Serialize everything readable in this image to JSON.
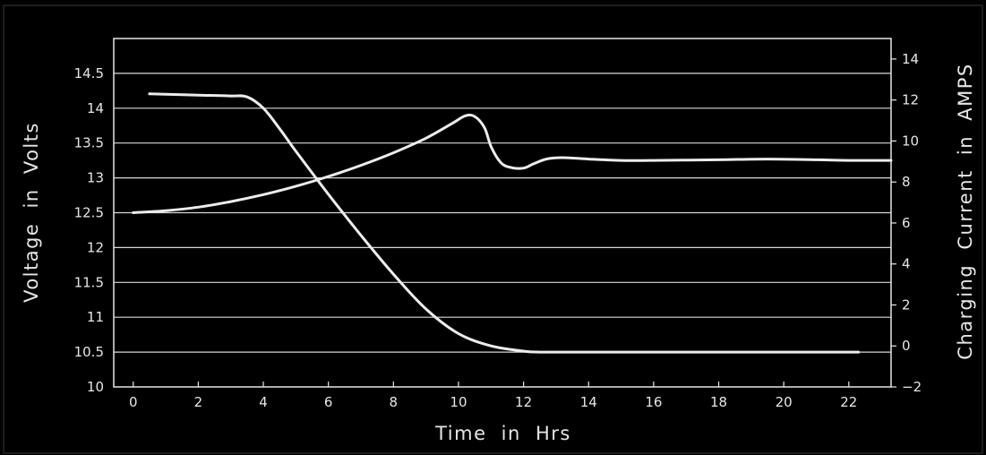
{
  "chart_data": {
    "type": "line",
    "xlabel": "Time in Hrs",
    "ylabel_left": "Voltage in Volts",
    "ylabel_right": "Charging Current in AMPS",
    "xlim": [
      -0.6,
      23.3
    ],
    "ylim_left": [
      10,
      15
    ],
    "ylim_right": [
      -2,
      15
    ],
    "x_ticks": [
      0,
      2,
      4,
      6,
      8,
      10,
      12,
      14,
      16,
      18,
      20,
      22
    ],
    "y_left_ticks": [
      10,
      10.5,
      11,
      11.5,
      12,
      12.5,
      13,
      13.5,
      14,
      14.5
    ],
    "y_right_ticks": [
      -2,
      0,
      2,
      4,
      6,
      8,
      10,
      12,
      14
    ],
    "grid": true,
    "legend": "none",
    "line_color": "#ececec",
    "grid_color": "#d8d8d8",
    "background": "#000000",
    "series": [
      {
        "axis": "left",
        "x": [
          0,
          1,
          2,
          3,
          4,
          5,
          6,
          7,
          8,
          9,
          9.8,
          10.2,
          10.5,
          10.8,
          11,
          11.3,
          11.6,
          12,
          12.3,
          12.7,
          13.2,
          14,
          15,
          16,
          18,
          19.5,
          21,
          22,
          23.3
        ],
        "y": [
          12.5,
          12.53,
          12.58,
          12.66,
          12.76,
          12.88,
          13.02,
          13.18,
          13.36,
          13.57,
          13.78,
          13.89,
          13.88,
          13.72,
          13.45,
          13.22,
          13.15,
          13.14,
          13.2,
          13.27,
          13.29,
          13.27,
          13.25,
          13.25,
          13.26,
          13.27,
          13.26,
          13.25,
          13.25
        ]
      },
      {
        "axis": "right",
        "x": [
          0.5,
          1,
          2,
          3,
          3.5,
          4,
          4.5,
          5,
          6,
          7,
          8,
          9,
          10,
          11,
          12,
          12.5,
          14,
          16,
          18,
          20,
          22.3
        ],
        "y": [
          12.3,
          12.28,
          12.24,
          12.2,
          12.15,
          11.6,
          10.6,
          9.5,
          7.4,
          5.4,
          3.5,
          1.8,
          0.6,
          0,
          -0.25,
          -0.3,
          -0.3,
          -0.3,
          -0.3,
          -0.3,
          -0.3
        ]
      }
    ]
  }
}
